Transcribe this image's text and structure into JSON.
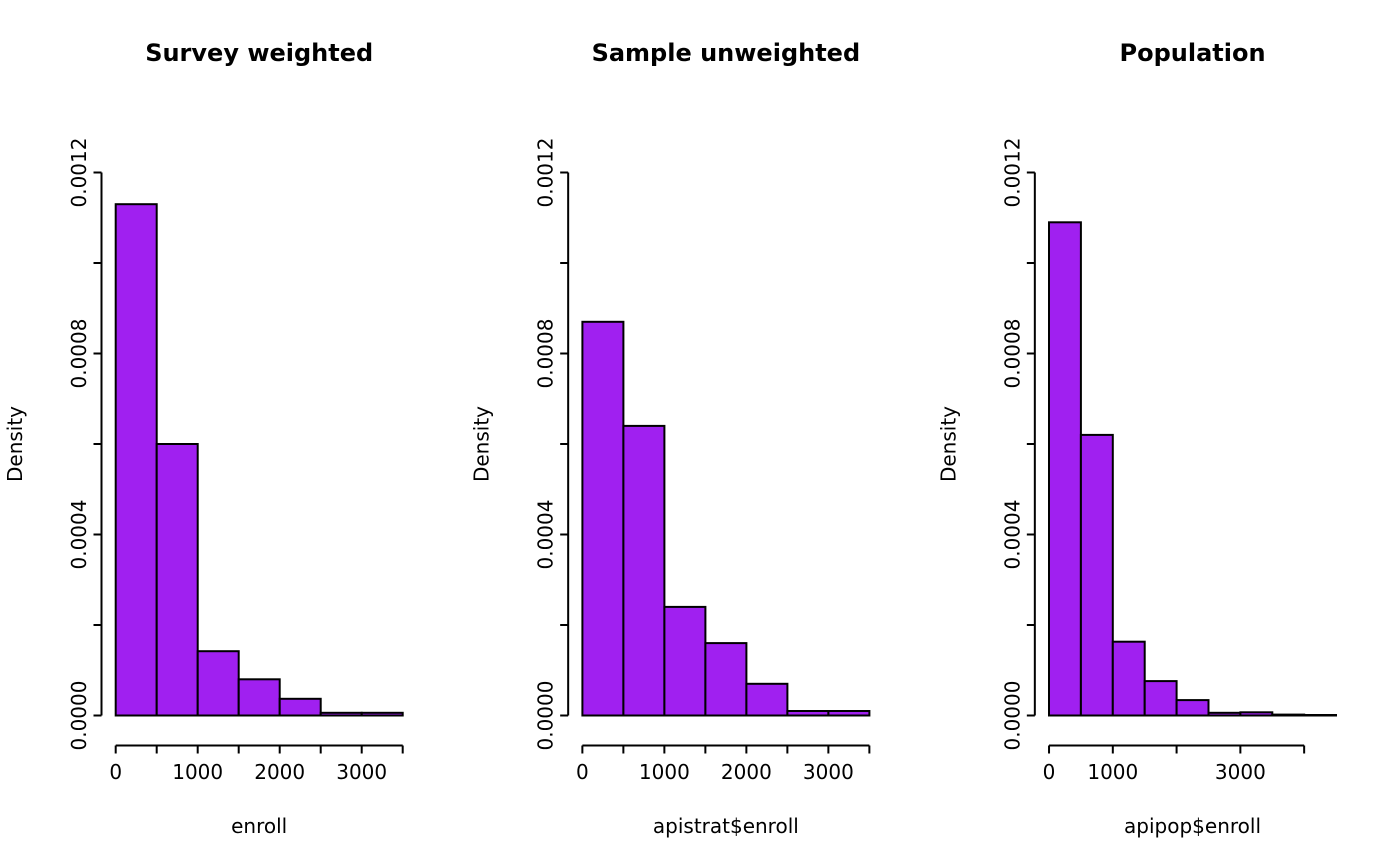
{
  "figure": {
    "background": "#ffffff",
    "bar_fill": "#A020F0",
    "bar_stroke": "#000000",
    "axis_color": "#000000"
  },
  "chart_data": [
    {
      "type": "histogram",
      "title": "Survey weighted",
      "xlabel": "enroll",
      "ylabel": "Density",
      "bin_start": 0,
      "bin_width": 500,
      "densities": [
        0.00113,
        0.0006,
        0.000142,
        8e-05,
        3.7e-05,
        6e-06,
        6e-06
      ],
      "xlim": [
        0,
        3500
      ],
      "ylim": [
        0,
        0.0012
      ],
      "grid": "off",
      "x_ticks": [
        {
          "value": 0,
          "label": "0"
        },
        {
          "value": 500,
          "label": ""
        },
        {
          "value": 1000,
          "label": "1000"
        },
        {
          "value": 1500,
          "label": ""
        },
        {
          "value": 2000,
          "label": "2000"
        },
        {
          "value": 2500,
          "label": ""
        },
        {
          "value": 3000,
          "label": "3000"
        },
        {
          "value": 3500,
          "label": ""
        }
      ],
      "y_ticks": [
        {
          "value": 0,
          "label": "0.0000"
        },
        {
          "value": 0.0002,
          "label": ""
        },
        {
          "value": 0.0004,
          "label": "0.0004"
        },
        {
          "value": 0.0006,
          "label": ""
        },
        {
          "value": 0.0008,
          "label": "0.0008"
        },
        {
          "value": 0.001,
          "label": ""
        },
        {
          "value": 0.0012,
          "label": "0.0012"
        }
      ]
    },
    {
      "type": "histogram",
      "title": "Sample unweighted",
      "xlabel": "apistrat$enroll",
      "ylabel": "Density",
      "bin_start": 0,
      "bin_width": 500,
      "densities": [
        0.00087,
        0.00064,
        0.00024,
        0.00016,
        7e-05,
        1e-05,
        1e-05
      ],
      "xlim": [
        0,
        3500
      ],
      "ylim": [
        0,
        0.0012
      ],
      "grid": "off",
      "x_ticks": [
        {
          "value": 0,
          "label": "0"
        },
        {
          "value": 500,
          "label": ""
        },
        {
          "value": 1000,
          "label": "1000"
        },
        {
          "value": 1500,
          "label": ""
        },
        {
          "value": 2000,
          "label": "2000"
        },
        {
          "value": 2500,
          "label": ""
        },
        {
          "value": 3000,
          "label": "3000"
        },
        {
          "value": 3500,
          "label": ""
        }
      ],
      "y_ticks": [
        {
          "value": 0,
          "label": "0.0000"
        },
        {
          "value": 0.0002,
          "label": ""
        },
        {
          "value": 0.0004,
          "label": "0.0004"
        },
        {
          "value": 0.0006,
          "label": ""
        },
        {
          "value": 0.0008,
          "label": "0.0008"
        },
        {
          "value": 0.001,
          "label": ""
        },
        {
          "value": 0.0012,
          "label": "0.0012"
        }
      ]
    },
    {
      "type": "histogram",
      "title": "Population",
      "xlabel": "apipop$enroll",
      "ylabel": "Density",
      "bin_start": 0,
      "bin_width": 500,
      "densities": [
        0.00109,
        0.00062,
        0.000163,
        7.6e-05,
        3.4e-05,
        6e-06,
        7e-06,
        2e-06,
        1e-06
      ],
      "xlim": [
        0,
        4500
      ],
      "ylim": [
        0,
        0.0012
      ],
      "grid": "off",
      "x_ticks": [
        {
          "value": 0,
          "label": "0"
        },
        {
          "value": 1000,
          "label": "1000"
        },
        {
          "value": 2000,
          "label": ""
        },
        {
          "value": 3000,
          "label": "3000"
        },
        {
          "value": 4000,
          "label": ""
        }
      ],
      "y_ticks": [
        {
          "value": 0,
          "label": "0.0000"
        },
        {
          "value": 0.0002,
          "label": ""
        },
        {
          "value": 0.0004,
          "label": "0.0004"
        },
        {
          "value": 0.0006,
          "label": ""
        },
        {
          "value": 0.0008,
          "label": "0.0008"
        },
        {
          "value": 0.001,
          "label": ""
        },
        {
          "value": 0.0012,
          "label": "0.0012"
        }
      ]
    }
  ]
}
